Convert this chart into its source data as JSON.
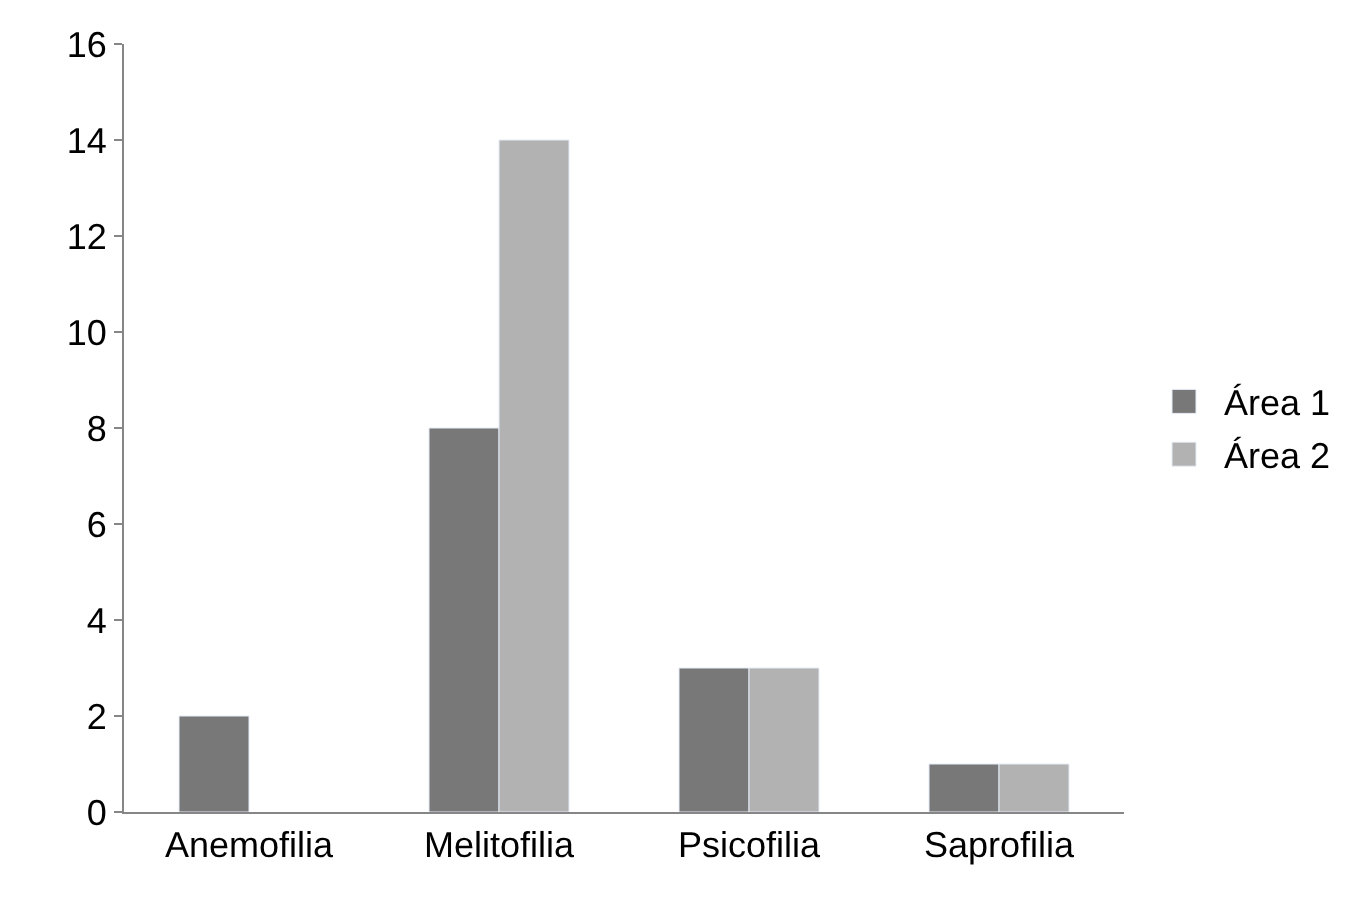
{
  "chart_data": {
    "type": "bar",
    "categories": [
      "Anemofilia",
      "Melitofilia",
      "Psicofilia",
      "Saprofilia"
    ],
    "series": [
      {
        "name": "Área 1",
        "color": "#787878",
        "values": [
          2,
          8,
          3,
          1
        ]
      },
      {
        "name": "Área 2",
        "color": "#b2b2b2",
        "values": [
          null,
          14,
          3,
          1
        ]
      }
    ],
    "ylim": [
      0,
      16
    ],
    "yticks": [
      0,
      2,
      4,
      6,
      8,
      10,
      12,
      14,
      16
    ],
    "legend": "right"
  }
}
